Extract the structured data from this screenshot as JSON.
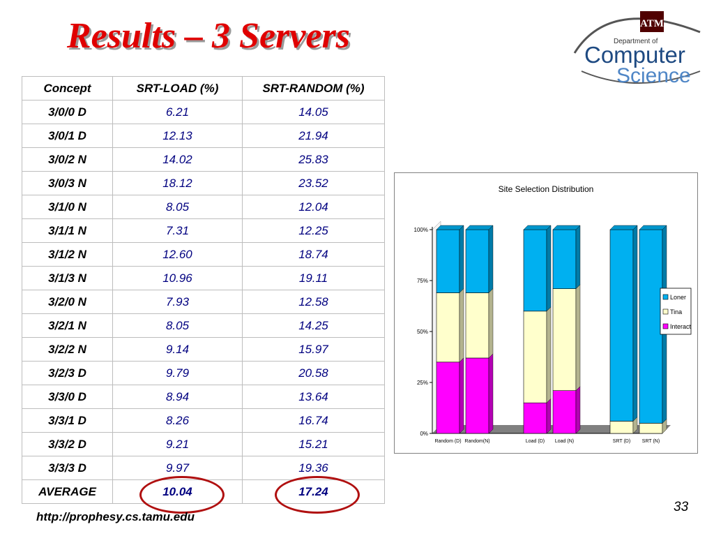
{
  "slide": {
    "title": "Results – 3 Servers",
    "url": "http://prophesy.cs.tamu.edu",
    "page_number": "33"
  },
  "logo": {
    "dept": "Department of",
    "line1": "Computer",
    "line2": "Science",
    "emblem": "ATM"
  },
  "table": {
    "headers": [
      "Concept",
      "SRT-LOAD (%)",
      "SRT-RANDOM (%)"
    ],
    "rows": [
      {
        "concept": "3/0/0 D",
        "load": "6.21",
        "random": "14.05"
      },
      {
        "concept": "3/0/1 D",
        "load": "12.13",
        "random": "21.94"
      },
      {
        "concept": "3/0/2 N",
        "load": "14.02",
        "random": "25.83"
      },
      {
        "concept": "3/0/3 N",
        "load": "18.12",
        "random": "23.52"
      },
      {
        "concept": "3/1/0 N",
        "load": "8.05",
        "random": "12.04"
      },
      {
        "concept": "3/1/1 N",
        "load": "7.31",
        "random": "12.25"
      },
      {
        "concept": "3/1/2 N",
        "load": "12.60",
        "random": "18.74"
      },
      {
        "concept": "3/1/3 N",
        "load": "10.96",
        "random": "19.11"
      },
      {
        "concept": "3/2/0 N",
        "load": "7.93",
        "random": "12.58"
      },
      {
        "concept": "3/2/1 N",
        "load": "8.05",
        "random": "14.25"
      },
      {
        "concept": "3/2/2 N",
        "load": "9.14",
        "random": "15.97"
      },
      {
        "concept": "3/2/3 D",
        "load": "9.79",
        "random": "20.58"
      },
      {
        "concept": "3/3/0 D",
        "load": "8.94",
        "random": "13.64"
      },
      {
        "concept": "3/3/1 D",
        "load": "8.26",
        "random": "16.74"
      },
      {
        "concept": "3/3/2 D",
        "load": "9.21",
        "random": "15.21"
      },
      {
        "concept": "3/3/3 D",
        "load": "9.97",
        "random": "19.36"
      }
    ],
    "average": {
      "concept": "AVERAGE",
      "load": "10.04",
      "random": "17.24"
    }
  },
  "chart_data": {
    "type": "bar",
    "stacked": true,
    "percent": true,
    "title": "Site Selection Distribution",
    "categories": [
      "Random (D)",
      "Random(N)",
      "Load (D)",
      "Load (N)",
      "SRT (D)",
      "SRT (N)"
    ],
    "groups": [
      [
        0,
        1
      ],
      [
        2,
        3
      ],
      [
        4,
        5
      ]
    ],
    "series": [
      {
        "name": "Interact",
        "color": "#ff00ff",
        "values": [
          35,
          37,
          15,
          21,
          0,
          0
        ]
      },
      {
        "name": "Tina",
        "color": "#ffffcc",
        "values": [
          34,
          32,
          45,
          50,
          6,
          5
        ]
      },
      {
        "name": "Loner",
        "color": "#00b0f0",
        "values": [
          31,
          31,
          40,
          29,
          94,
          95
        ]
      }
    ],
    "ylim": [
      0,
      100
    ],
    "yticks": [
      "0%",
      "25%",
      "50%",
      "75%",
      "100%"
    ],
    "legend": "right",
    "grid": false
  }
}
